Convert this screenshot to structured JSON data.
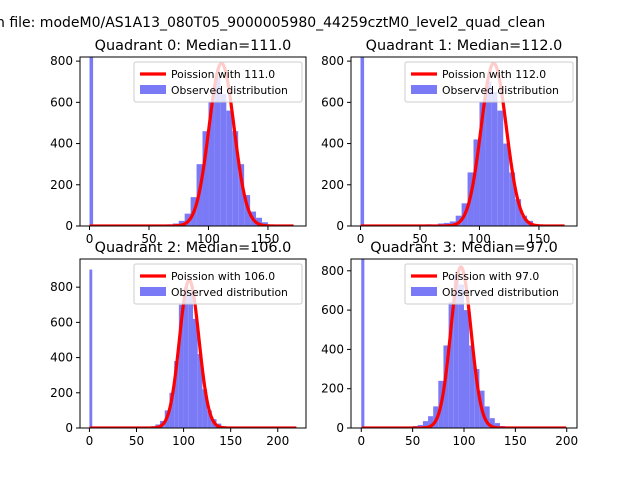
{
  "suptitle": "n file: modeM0/AS1A13_080T05_9000005980_44259cztM0_level2_quad_clean",
  "colors": {
    "hist": "#7a7af7",
    "poisson": "#ff0000",
    "axes": "#000000"
  },
  "chart_data": [
    {
      "type": "bar",
      "title": "Quadrant 0: Median=111.0",
      "xlim": [
        -8,
        182
      ],
      "ylim": [
        0,
        820
      ],
      "xticks": [
        0,
        50,
        100,
        150
      ],
      "yticks": [
        0,
        200,
        400,
        600,
        800
      ],
      "grid": false,
      "legend_position": "top-right",
      "series": [
        {
          "name": "Observed distribution",
          "kind": "histogram",
          "bins": [
            0,
            60,
            65,
            70,
            75,
            80,
            85,
            90,
            95,
            100,
            105,
            110,
            115,
            120,
            125,
            130,
            135,
            140,
            145,
            150
          ],
          "values": [
            820,
            5,
            8,
            12,
            25,
            60,
            140,
            300,
            460,
            600,
            720,
            640,
            560,
            460,
            300,
            150,
            70,
            40,
            18,
            8
          ],
          "bin_width": 5
        },
        {
          "name": "Poission with 111.0",
          "kind": "poisson",
          "mean": 111.0,
          "peak": 790
        }
      ]
    },
    {
      "type": "bar",
      "title": "Quadrant 1: Median=112.0",
      "xlim": [
        -8,
        182
      ],
      "ylim": [
        0,
        820
      ],
      "xticks": [
        0,
        50,
        100,
        150
      ],
      "yticks": [
        0,
        200,
        400,
        600,
        800
      ],
      "grid": false,
      "legend_position": "top-right",
      "series": [
        {
          "name": "Observed distribution",
          "kind": "histogram",
          "bins": [
            0,
            55,
            60,
            65,
            70,
            75,
            80,
            85,
            90,
            95,
            100,
            105,
            110,
            115,
            120,
            125,
            130,
            135,
            140,
            145,
            150
          ],
          "values": [
            820,
            8,
            5,
            12,
            15,
            22,
            50,
            110,
            260,
            420,
            600,
            700,
            650,
            560,
            400,
            260,
            130,
            50,
            25,
            10,
            5
          ],
          "bin_width": 5
        },
        {
          "name": "Poission with 112.0",
          "kind": "poisson",
          "mean": 112.0,
          "peak": 790
        }
      ]
    },
    {
      "type": "bar",
      "title": "Quadrant 2: Median=106.0",
      "xlim": [
        -10,
        230
      ],
      "ylim": [
        0,
        960
      ],
      "xticks": [
        0,
        50,
        100,
        150,
        200
      ],
      "yticks": [
        0,
        200,
        400,
        600,
        800
      ],
      "grid": false,
      "legend_position": "top-right",
      "series": [
        {
          "name": "Observed distribution",
          "kind": "histogram",
          "bins": [
            0,
            60,
            65,
            70,
            75,
            80,
            85,
            90,
            95,
            100,
            105,
            110,
            115,
            120,
            125,
            130,
            135,
            140,
            145
          ],
          "values": [
            900,
            5,
            10,
            20,
            40,
            100,
            200,
            380,
            700,
            800,
            760,
            620,
            420,
            220,
            100,
            50,
            25,
            10,
            5
          ],
          "bin_width": 5
        },
        {
          "name": "Poission with 106.0",
          "kind": "poisson",
          "mean": 106.0,
          "peak": 840
        }
      ]
    },
    {
      "type": "bar",
      "title": "Quadrant 3: Median=97.0",
      "xlim": [
        -10,
        210
      ],
      "ylim": [
        0,
        860
      ],
      "xticks": [
        0,
        50,
        100,
        150,
        200
      ],
      "yticks": [
        0,
        200,
        400,
        600,
        800
      ],
      "grid": false,
      "legend_position": "top-right",
      "series": [
        {
          "name": "Observed distribution",
          "kind": "histogram",
          "bins": [
            0,
            45,
            50,
            55,
            60,
            65,
            70,
            75,
            80,
            85,
            90,
            95,
            100,
            105,
            110,
            115,
            120,
            125,
            130,
            135,
            140
          ],
          "values": [
            860,
            5,
            10,
            15,
            35,
            60,
            110,
            240,
            420,
            640,
            780,
            730,
            600,
            420,
            300,
            190,
            110,
            50,
            25,
            10,
            5
          ],
          "bin_width": 5
        },
        {
          "name": "Poission with 97.0",
          "kind": "poisson",
          "mean": 97.0,
          "peak": 820
        }
      ]
    }
  ]
}
